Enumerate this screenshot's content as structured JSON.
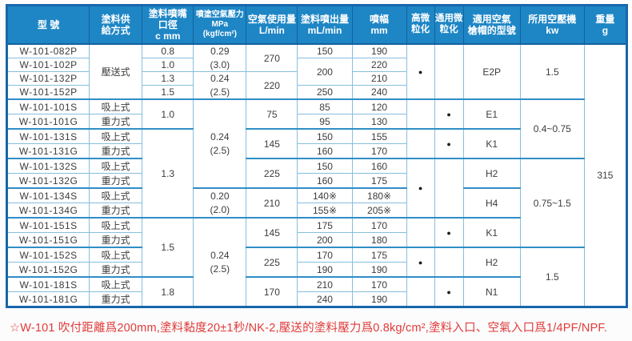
{
  "colors": {
    "header_bg": "#1e86c5",
    "header_border": "#1261a0",
    "outer_border": "#1766ab",
    "grid_line": "#86bedf",
    "group_line": "#2f8ec6",
    "body_text": "#3c3c3c",
    "note_red": "#e03a3a"
  },
  "note": "☆W-101 吹付距離爲200mm,塗料黏度20±1秒/NK-2,壓送的塗料壓力爲0.8kg/cm²,塗料入口、空氣入口爲1/4PF/NPF.",
  "table": {
    "headers": [
      {
        "key": "model",
        "lines": [
          "型 號"
        ]
      },
      {
        "key": "supply",
        "lines": [
          "塗料供",
          "給方式"
        ]
      },
      {
        "key": "nozzle",
        "lines": [
          "塗料噴嘴",
          "口徑",
          "c mm"
        ]
      },
      {
        "key": "pressure",
        "lines": [
          "噴塗空氣壓力",
          "MPa (kgf/cm²)"
        ]
      },
      {
        "key": "air",
        "lines": [
          "空氣使用量",
          "L/min"
        ]
      },
      {
        "key": "output",
        "lines": [
          "塗料噴出量",
          "mL/min"
        ]
      },
      {
        "key": "width",
        "lines": [
          "噴幅",
          "mm"
        ]
      },
      {
        "key": "high",
        "lines": [
          "高微",
          "粒化"
        ]
      },
      {
        "key": "general",
        "lines": [
          "通用微",
          "粒化"
        ]
      },
      {
        "key": "cap",
        "lines": [
          "適用空氣",
          "槍帽的型號"
        ]
      },
      {
        "key": "compressor",
        "lines": [
          "所用空壓機",
          "kw"
        ]
      },
      {
        "key": "weight",
        "lines": [
          "重量",
          "g"
        ]
      }
    ],
    "rows": [
      {
        "group": false,
        "cells": [
          {
            "col": "model",
            "text": "W-101-082P",
            "rowspan": 1
          },
          {
            "col": "supply",
            "text": "壓送式",
            "rowspan": 4
          },
          {
            "col": "nozzle",
            "text": "0.8",
            "rowspan": 1
          },
          {
            "col": "pressure",
            "text": "0.29\n(3.0)",
            "rowspan": 2
          },
          {
            "col": "air",
            "text": "270",
            "rowspan": 2
          },
          {
            "col": "output",
            "text": "150",
            "rowspan": 1
          },
          {
            "col": "width",
            "text": "190",
            "rowspan": 1
          },
          {
            "col": "high",
            "text": "●",
            "rowspan": 4
          },
          {
            "col": "general",
            "text": "",
            "rowspan": 4
          },
          {
            "col": "cap",
            "text": "E2P",
            "rowspan": 4
          },
          {
            "col": "compressor",
            "text": "1.5",
            "rowspan": 4
          },
          {
            "col": "weight",
            "text": "315",
            "rowspan": 18
          }
        ]
      },
      {
        "group": false,
        "cells": [
          {
            "col": "model",
            "text": "W-101-102P",
            "rowspan": 1
          },
          {
            "col": "nozzle",
            "text": "1.0",
            "rowspan": 1
          },
          {
            "col": "output",
            "text": "200",
            "rowspan": 2
          },
          {
            "col": "width",
            "text": "220",
            "rowspan": 1
          }
        ]
      },
      {
        "group": false,
        "cells": [
          {
            "col": "model",
            "text": "W-101-132P",
            "rowspan": 1
          },
          {
            "col": "nozzle",
            "text": "1.3",
            "rowspan": 1
          },
          {
            "col": "pressure",
            "text": "0.24\n(2.5)",
            "rowspan": 2
          },
          {
            "col": "air",
            "text": "220",
            "rowspan": 2
          },
          {
            "col": "width",
            "text": "210",
            "rowspan": 1
          }
        ]
      },
      {
        "group": false,
        "cells": [
          {
            "col": "model",
            "text": "W-101-152P",
            "rowspan": 1
          },
          {
            "col": "nozzle",
            "text": "1.5",
            "rowspan": 1
          },
          {
            "col": "output",
            "text": "250",
            "rowspan": 1
          },
          {
            "col": "width",
            "text": "240",
            "rowspan": 1
          }
        ]
      },
      {
        "group": true,
        "cells": [
          {
            "col": "model",
            "text": "W-101-101S",
            "rowspan": 1
          },
          {
            "col": "supply",
            "text": "吸上式",
            "rowspan": 1
          },
          {
            "col": "nozzle",
            "text": "1.0",
            "rowspan": 2
          },
          {
            "col": "pressure",
            "text": "0.24\n(2.5)",
            "rowspan": 6
          },
          {
            "col": "air",
            "text": "75",
            "rowspan": 2
          },
          {
            "col": "output",
            "text": "85",
            "rowspan": 1
          },
          {
            "col": "width",
            "text": "120",
            "rowspan": 1
          },
          {
            "col": "high",
            "text": "",
            "rowspan": 2
          },
          {
            "col": "general",
            "text": "●",
            "rowspan": 2
          },
          {
            "col": "cap",
            "text": "E1",
            "rowspan": 2
          },
          {
            "col": "compressor",
            "text": "0.4~0.75",
            "rowspan": 4
          }
        ]
      },
      {
        "group": false,
        "cells": [
          {
            "col": "model",
            "text": "W-101-101G",
            "rowspan": 1
          },
          {
            "col": "supply",
            "text": "重力式",
            "rowspan": 1
          },
          {
            "col": "output",
            "text": "95",
            "rowspan": 1
          },
          {
            "col": "width",
            "text": "130",
            "rowspan": 1
          }
        ]
      },
      {
        "group": true,
        "cells": [
          {
            "col": "model",
            "text": "W-101-131S",
            "rowspan": 1
          },
          {
            "col": "supply",
            "text": "吸上式",
            "rowspan": 1
          },
          {
            "col": "nozzle",
            "text": "1.3",
            "rowspan": 6
          },
          {
            "col": "air",
            "text": "145",
            "rowspan": 2
          },
          {
            "col": "output",
            "text": "150",
            "rowspan": 1
          },
          {
            "col": "width",
            "text": "155",
            "rowspan": 1
          },
          {
            "col": "high",
            "text": "",
            "rowspan": 2
          },
          {
            "col": "general",
            "text": "●",
            "rowspan": 2
          },
          {
            "col": "cap",
            "text": "K1",
            "rowspan": 2
          }
        ]
      },
      {
        "group": false,
        "cells": [
          {
            "col": "model",
            "text": "W-101-131G",
            "rowspan": 1
          },
          {
            "col": "supply",
            "text": "重力式",
            "rowspan": 1
          },
          {
            "col": "output",
            "text": "160",
            "rowspan": 1
          },
          {
            "col": "width",
            "text": "170",
            "rowspan": 1
          }
        ]
      },
      {
        "group": true,
        "cells": [
          {
            "col": "model",
            "text": "W-101-132S",
            "rowspan": 1
          },
          {
            "col": "supply",
            "text": "吸上式",
            "rowspan": 1
          },
          {
            "col": "air",
            "text": "225",
            "rowspan": 2
          },
          {
            "col": "output",
            "text": "150",
            "rowspan": 1
          },
          {
            "col": "width",
            "text": "160",
            "rowspan": 1
          },
          {
            "col": "high",
            "text": "●",
            "rowspan": 4
          },
          {
            "col": "general",
            "text": "",
            "rowspan": 4
          },
          {
            "col": "cap",
            "text": "H2",
            "rowspan": 2
          },
          {
            "col": "compressor",
            "text": "0.75~1.5",
            "rowspan": 6
          }
        ]
      },
      {
        "group": false,
        "cells": [
          {
            "col": "model",
            "text": "W-101-132G",
            "rowspan": 1
          },
          {
            "col": "supply",
            "text": "重力式",
            "rowspan": 1
          },
          {
            "col": "output",
            "text": "160",
            "rowspan": 1
          },
          {
            "col": "width",
            "text": "175",
            "rowspan": 1
          }
        ]
      },
      {
        "group": true,
        "cells": [
          {
            "col": "model",
            "text": "W-101-134S",
            "rowspan": 1
          },
          {
            "col": "supply",
            "text": "吸上式",
            "rowspan": 1
          },
          {
            "col": "pressure",
            "text": "0.20\n(2.0)",
            "rowspan": 2
          },
          {
            "col": "air",
            "text": "210",
            "rowspan": 2
          },
          {
            "col": "output",
            "text": "140※",
            "rowspan": 1
          },
          {
            "col": "width",
            "text": "180※",
            "rowspan": 1
          },
          {
            "col": "cap",
            "text": "H4",
            "rowspan": 2
          }
        ]
      },
      {
        "group": false,
        "cells": [
          {
            "col": "model",
            "text": "W-101-134G",
            "rowspan": 1
          },
          {
            "col": "supply",
            "text": "重力式",
            "rowspan": 1
          },
          {
            "col": "output",
            "text": "155※",
            "rowspan": 1
          },
          {
            "col": "width",
            "text": "205※",
            "rowspan": 1
          }
        ]
      },
      {
        "group": true,
        "cells": [
          {
            "col": "model",
            "text": "W-101-151S",
            "rowspan": 1
          },
          {
            "col": "supply",
            "text": "吸上式",
            "rowspan": 1
          },
          {
            "col": "nozzle",
            "text": "1.5",
            "rowspan": 4
          },
          {
            "col": "pressure",
            "text": "0.24\n(2.5)",
            "rowspan": 6
          },
          {
            "col": "air",
            "text": "145",
            "rowspan": 2
          },
          {
            "col": "output",
            "text": "175",
            "rowspan": 1
          },
          {
            "col": "width",
            "text": "170",
            "rowspan": 1
          },
          {
            "col": "high",
            "text": "",
            "rowspan": 2
          },
          {
            "col": "general",
            "text": "●",
            "rowspan": 2
          },
          {
            "col": "cap",
            "text": "K1",
            "rowspan": 2
          }
        ]
      },
      {
        "group": false,
        "cells": [
          {
            "col": "model",
            "text": "W-101-151G",
            "rowspan": 1
          },
          {
            "col": "supply",
            "text": "重力式",
            "rowspan": 1
          },
          {
            "col": "output",
            "text": "200",
            "rowspan": 1
          },
          {
            "col": "width",
            "text": "180",
            "rowspan": 1
          }
        ]
      },
      {
        "group": true,
        "cells": [
          {
            "col": "model",
            "text": "W-101-152S",
            "rowspan": 1
          },
          {
            "col": "supply",
            "text": "吸上式",
            "rowspan": 1
          },
          {
            "col": "air",
            "text": "225",
            "rowspan": 2
          },
          {
            "col": "output",
            "text": "170",
            "rowspan": 1
          },
          {
            "col": "width",
            "text": "175",
            "rowspan": 1
          },
          {
            "col": "high",
            "text": "●",
            "rowspan": 2
          },
          {
            "col": "general",
            "text": "",
            "rowspan": 2
          },
          {
            "col": "cap",
            "text": "H2",
            "rowspan": 2
          },
          {
            "col": "compressor",
            "text": "1.5",
            "rowspan": 4
          }
        ]
      },
      {
        "group": false,
        "cells": [
          {
            "col": "model",
            "text": "W-101-152G",
            "rowspan": 1
          },
          {
            "col": "supply",
            "text": "重力式",
            "rowspan": 1
          },
          {
            "col": "output",
            "text": "190",
            "rowspan": 1
          },
          {
            "col": "width",
            "text": "190",
            "rowspan": 1
          }
        ]
      },
      {
        "group": true,
        "cells": [
          {
            "col": "model",
            "text": "W-101-181S",
            "rowspan": 1
          },
          {
            "col": "supply",
            "text": "吸上式",
            "rowspan": 1
          },
          {
            "col": "nozzle",
            "text": "1.8",
            "rowspan": 2
          },
          {
            "col": "air",
            "text": "170",
            "rowspan": 2
          },
          {
            "col": "output",
            "text": "210",
            "rowspan": 1
          },
          {
            "col": "width",
            "text": "170",
            "rowspan": 1
          },
          {
            "col": "high",
            "text": "",
            "rowspan": 2
          },
          {
            "col": "general",
            "text": "●",
            "rowspan": 2
          },
          {
            "col": "cap",
            "text": "N1",
            "rowspan": 2
          }
        ]
      },
      {
        "group": false,
        "cells": [
          {
            "col": "model",
            "text": "W-101-181G",
            "rowspan": 1
          },
          {
            "col": "supply",
            "text": "重力式",
            "rowspan": 1
          },
          {
            "col": "output",
            "text": "240",
            "rowspan": 1
          },
          {
            "col": "width",
            "text": "190",
            "rowspan": 1
          }
        ]
      }
    ]
  }
}
